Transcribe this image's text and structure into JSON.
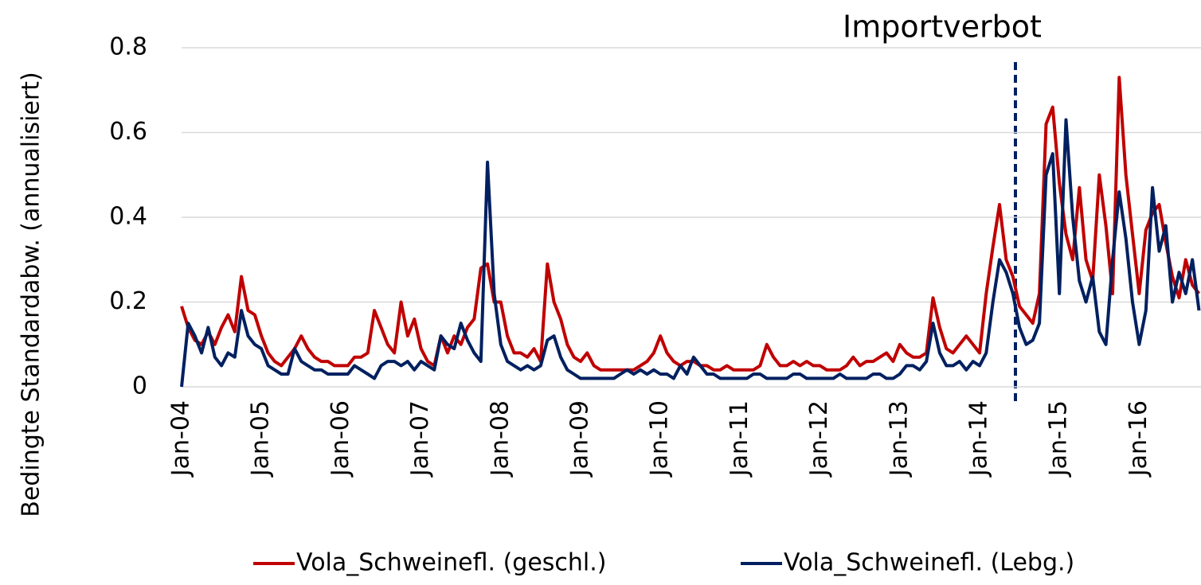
{
  "chart_data": {
    "type": "line",
    "y_label": "Bedingte Standardabw. (annualisiert)",
    "annotation": "Importverbot",
    "categories": [
      "Jan-04",
      null,
      null,
      null,
      null,
      null,
      null,
      null,
      null,
      null,
      null,
      null,
      "Jan-05",
      null,
      null,
      null,
      null,
      null,
      null,
      null,
      null,
      null,
      null,
      null,
      "Jan-06",
      null,
      null,
      null,
      null,
      null,
      null,
      null,
      null,
      null,
      null,
      null,
      "Jan-07",
      null,
      null,
      null,
      null,
      null,
      null,
      null,
      null,
      null,
      null,
      null,
      "Jan-08",
      null,
      null,
      null,
      null,
      null,
      null,
      null,
      null,
      null,
      null,
      null,
      "Jan-09",
      null,
      null,
      null,
      null,
      null,
      null,
      null,
      null,
      null,
      null,
      null,
      "Jan-10",
      null,
      null,
      null,
      null,
      null,
      null,
      null,
      null,
      null,
      null,
      null,
      "Jan-11",
      null,
      null,
      null,
      null,
      null,
      null,
      null,
      null,
      null,
      null,
      null,
      "Jan-12",
      null,
      null,
      null,
      null,
      null,
      null,
      null,
      null,
      null,
      null,
      null,
      "Jan-13",
      null,
      null,
      null,
      null,
      null,
      null,
      null,
      null,
      null,
      null,
      null,
      "Jan-14",
      null,
      null,
      null,
      null,
      null,
      null,
      null,
      null,
      null,
      null,
      null,
      "Jan-15",
      null,
      null,
      null,
      null,
      null,
      null,
      null,
      null,
      null,
      null,
      null,
      "Jan-16",
      null,
      null,
      null,
      null,
      null,
      null,
      null,
      null,
      null
    ],
    "series": [
      {
        "name": "Vola_Schweinefl. (geschl.)",
        "color": "#c00000",
        "values": [
          0.19,
          0.14,
          0.11,
          0.1,
          0.13,
          0.1,
          0.14,
          0.17,
          0.13,
          0.26,
          0.18,
          0.17,
          0.12,
          0.08,
          0.06,
          0.05,
          0.07,
          0.09,
          0.12,
          0.09,
          0.07,
          0.06,
          0.06,
          0.05,
          0.05,
          0.05,
          0.07,
          0.07,
          0.08,
          0.18,
          0.14,
          0.1,
          0.08,
          0.2,
          0.12,
          0.16,
          0.09,
          0.06,
          0.05,
          0.12,
          0.08,
          0.12,
          0.1,
          0.14,
          0.16,
          0.28,
          0.29,
          0.2,
          0.2,
          0.12,
          0.08,
          0.08,
          0.07,
          0.09,
          0.06,
          0.29,
          0.2,
          0.16,
          0.1,
          0.07,
          0.06,
          0.08,
          0.05,
          0.04,
          0.04,
          0.04,
          0.04,
          0.04,
          0.04,
          0.05,
          0.06,
          0.08,
          0.12,
          0.08,
          0.06,
          0.05,
          0.06,
          0.06,
          0.05,
          0.05,
          0.04,
          0.04,
          0.05,
          0.04,
          0.04,
          0.04,
          0.04,
          0.05,
          0.1,
          0.07,
          0.05,
          0.05,
          0.06,
          0.05,
          0.06,
          0.05,
          0.05,
          0.04,
          0.04,
          0.04,
          0.05,
          0.07,
          0.05,
          0.06,
          0.06,
          0.07,
          0.08,
          0.06,
          0.1,
          0.08,
          0.07,
          0.07,
          0.08,
          0.21,
          0.14,
          0.09,
          0.08,
          0.1,
          0.12,
          0.1,
          0.08,
          0.22,
          0.33,
          0.43,
          0.3,
          0.26,
          0.19,
          0.17,
          0.15,
          0.22,
          0.62,
          0.66,
          0.48,
          0.36,
          0.3,
          0.47,
          0.3,
          0.25,
          0.5,
          0.38,
          0.22,
          0.73,
          0.5,
          0.36,
          0.22,
          0.37,
          0.41,
          0.43,
          0.34,
          0.26,
          0.21,
          0.3,
          0.24,
          0.22
        ]
      },
      {
        "name": "Vola_Schweinefl. (Lebg.)",
        "color": "#002060",
        "values": [
          0.0,
          0.15,
          0.12,
          0.08,
          0.14,
          0.07,
          0.05,
          0.08,
          0.07,
          0.18,
          0.12,
          0.1,
          0.09,
          0.05,
          0.04,
          0.03,
          0.03,
          0.09,
          0.06,
          0.05,
          0.04,
          0.04,
          0.03,
          0.03,
          0.03,
          0.03,
          0.05,
          0.04,
          0.03,
          0.02,
          0.05,
          0.06,
          0.06,
          0.05,
          0.06,
          0.04,
          0.06,
          0.05,
          0.04,
          0.12,
          0.1,
          0.09,
          0.15,
          0.11,
          0.08,
          0.06,
          0.53,
          0.22,
          0.1,
          0.06,
          0.05,
          0.04,
          0.05,
          0.04,
          0.05,
          0.11,
          0.12,
          0.07,
          0.04,
          0.03,
          0.02,
          0.02,
          0.02,
          0.02,
          0.02,
          0.02,
          0.03,
          0.04,
          0.03,
          0.04,
          0.03,
          0.04,
          0.03,
          0.03,
          0.02,
          0.05,
          0.03,
          0.07,
          0.05,
          0.03,
          0.03,
          0.02,
          0.02,
          0.02,
          0.02,
          0.02,
          0.03,
          0.03,
          0.02,
          0.02,
          0.02,
          0.02,
          0.03,
          0.03,
          0.02,
          0.02,
          0.02,
          0.02,
          0.02,
          0.03,
          0.02,
          0.02,
          0.02,
          0.02,
          0.03,
          0.03,
          0.02,
          0.02,
          0.03,
          0.05,
          0.05,
          0.04,
          0.06,
          0.15,
          0.08,
          0.05,
          0.05,
          0.06,
          0.04,
          0.06,
          0.05,
          0.08,
          0.2,
          0.3,
          0.27,
          0.22,
          0.14,
          0.1,
          0.11,
          0.15,
          0.5,
          0.55,
          0.22,
          0.63,
          0.4,
          0.25,
          0.2,
          0.26,
          0.13,
          0.1,
          0.3,
          0.46,
          0.35,
          0.2,
          0.1,
          0.18,
          0.47,
          0.32,
          0.38,
          0.2,
          0.27,
          0.22,
          0.3,
          0.18
        ]
      }
    ],
    "ylim": [
      0,
      0.8
    ],
    "yticks": [
      0,
      0.2,
      0.4,
      0.6,
      0.8
    ],
    "grid": true,
    "legend": "bottom"
  }
}
